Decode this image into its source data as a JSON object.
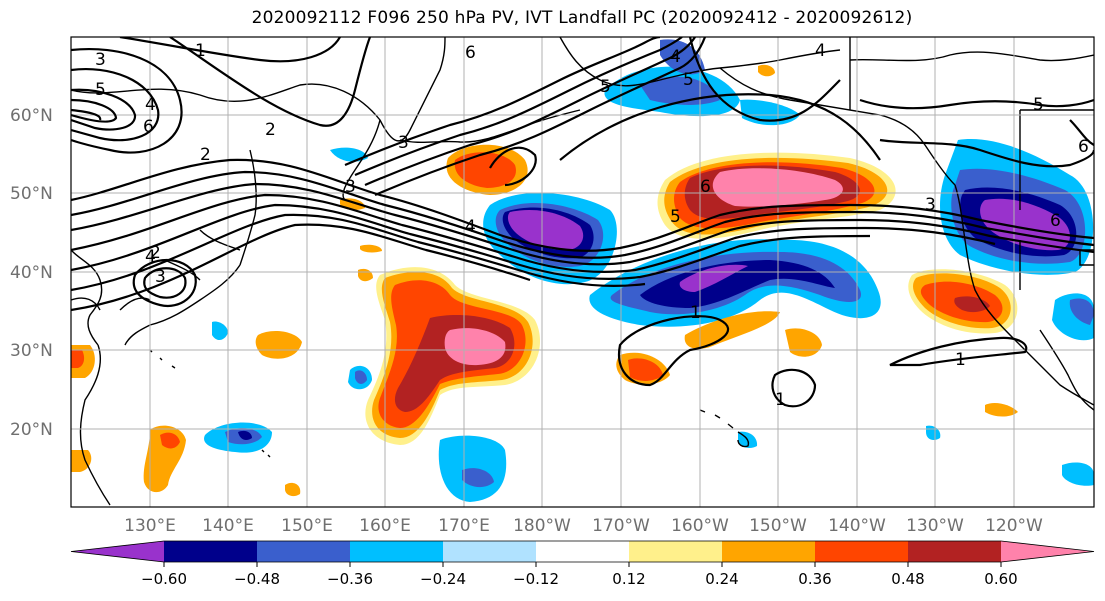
{
  "title": "2020092112 F096 250 hPa PV, IVT Landfall PC (2020092412 - 2020092612)",
  "lat_labels": [
    "60°N",
    "50°N",
    "40°N",
    "30°N",
    "20°N"
  ],
  "lon_labels": [
    "130°E",
    "140°E",
    "150°E",
    "160°E",
    "170°E",
    "180°W",
    "170°W",
    "160°W",
    "150°W",
    "140°W",
    "130°W",
    "120°W"
  ],
  "colorbar": {
    "colors": [
      "#9932cc",
      "#00008b",
      "#3a5fcd",
      "#00bfff",
      "#b0e2ff",
      "#ffffff",
      "#fff08b",
      "#ffa500",
      "#ff4500",
      "#b22222",
      "#ff82ab"
    ],
    "tick_labels": [
      "−0.60",
      "−0.48",
      "−0.36",
      "−0.24",
      "−0.12",
      "0.12",
      "0.24",
      "0.36",
      "0.48",
      "0.60"
    ]
  },
  "contour_labels": [
    "1",
    "2",
    "3",
    "4",
    "5",
    "6",
    "1",
    "2",
    "3",
    "4",
    "5",
    "6",
    "4",
    "5",
    "6",
    "3",
    "5",
    "4",
    "3",
    "1",
    "1",
    "2",
    "3",
    "4",
    "5",
    "6",
    "6"
  ]
}
